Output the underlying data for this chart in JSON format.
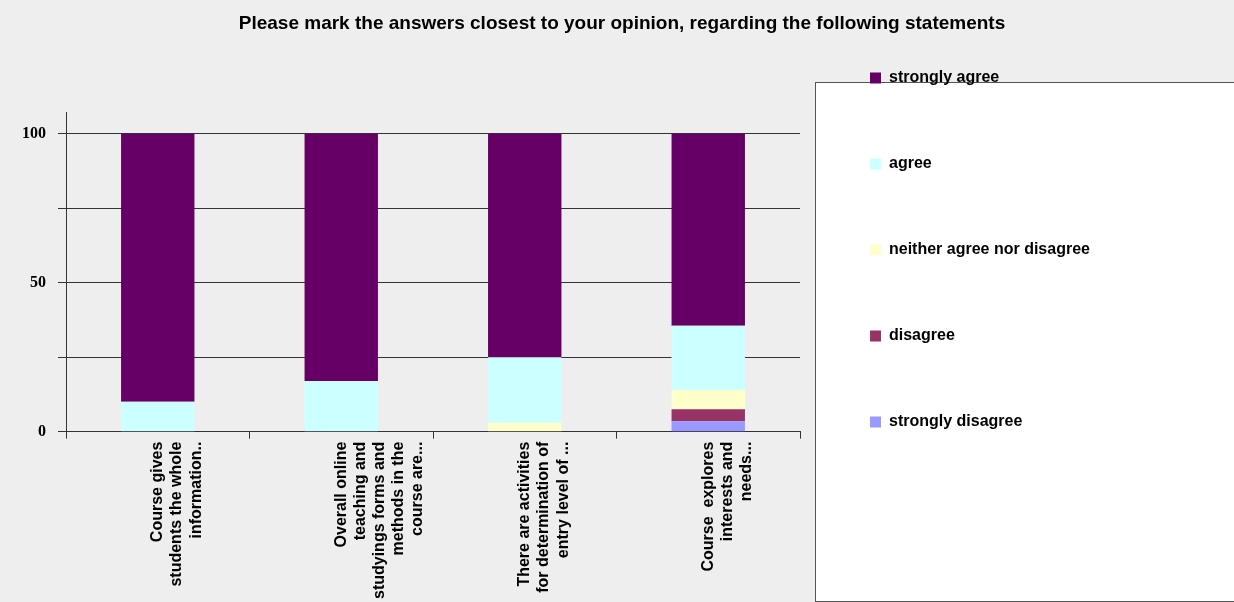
{
  "chart_data": {
    "type": "bar",
    "title": "Please mark the answers closest to your opinion, regarding the following statements",
    "categories": [
      "Course gives students the whole information..",
      "Overall online teaching and studyings forms and methods in the course are...",
      "There are activities for determination of entry level of ...",
      "Course  explores interests and needs..."
    ],
    "stacked": true,
    "series": [
      {
        "name": "strongly disagree",
        "color": "#9999ff",
        "values": [
          0,
          0,
          0,
          3.5
        ]
      },
      {
        "name": "disagree",
        "color": "#993366",
        "values": [
          0,
          0,
          0,
          4
        ]
      },
      {
        "name": "neither agree nor disagree",
        "color": "#ffffcc",
        "values": [
          0,
          0,
          3,
          6.5
        ]
      },
      {
        "name": "agree",
        "color": "#ccffff",
        "values": [
          10,
          17,
          22,
          21.5
        ]
      },
      {
        "name": "strongly agree",
        "color": "#660066",
        "values": [
          90,
          83,
          75,
          64.5
        ]
      }
    ],
    "ylim": [
      0,
      107
    ],
    "yticks": [
      0,
      {
        "value": 25,
        "label": null
      },
      50,
      {
        "value": 75,
        "label": null
      },
      100
    ],
    "grid": "y",
    "legend": "right"
  }
}
